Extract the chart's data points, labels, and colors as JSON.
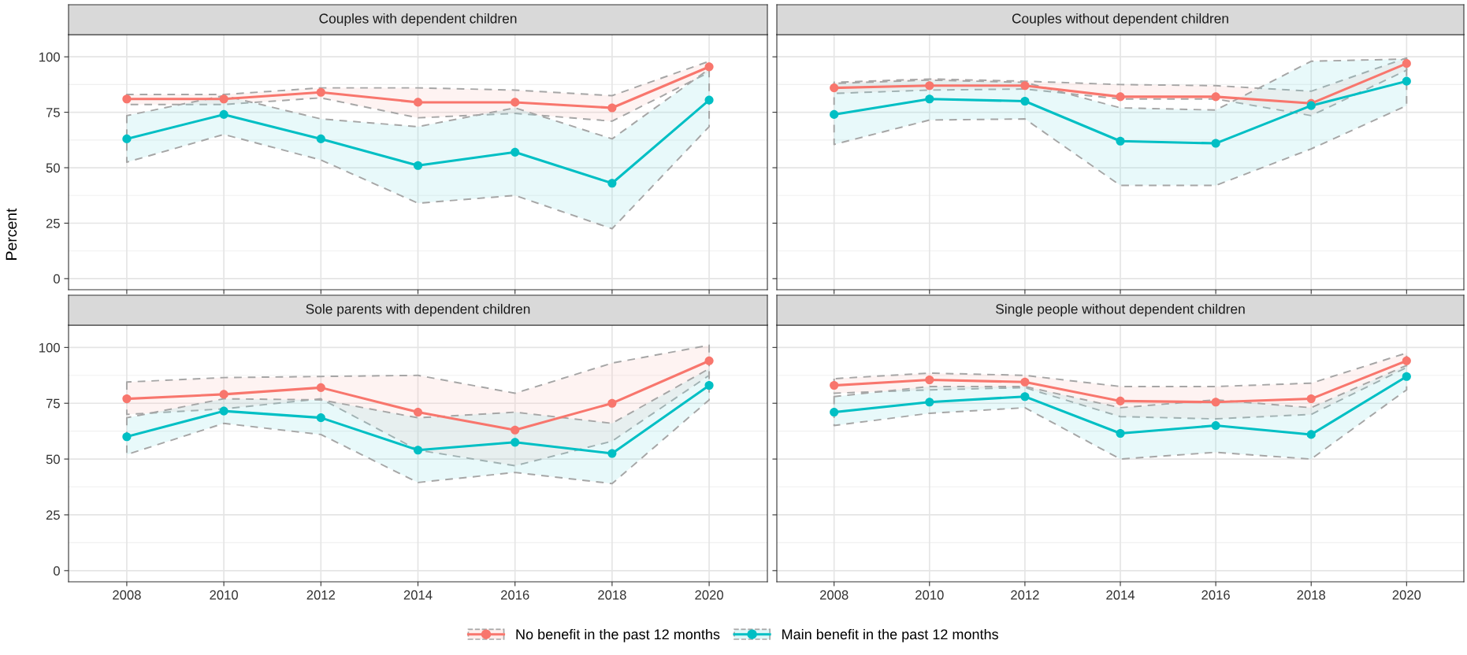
{
  "chart_data": [
    {
      "type": "line",
      "title": "Couples with dependent children",
      "ylabel": "Percent",
      "x": [
        2008,
        2010,
        2012,
        2014,
        2016,
        2018,
        2020
      ],
      "xlim": [
        2006.8,
        2021.2
      ],
      "xticks": [
        2008,
        2010,
        2012,
        2014,
        2016,
        2018,
        2020
      ],
      "ylim": [
        -5,
        110
      ],
      "yticks": [
        0,
        25,
        50,
        75,
        100
      ],
      "grid": true,
      "marker": "circle",
      "line_style": "solid",
      "legend": "bottom",
      "tick_labels": "y",
      "series": [
        {
          "name": "No benefit in the past 12 months",
          "color": "#f8766d",
          "values": [
            81,
            81,
            84,
            79.5,
            79.5,
            77,
            95.5
          ],
          "lower": [
            78.5,
            78.5,
            81.5,
            72.5,
            74.5,
            71,
            93
          ],
          "upper": [
            83,
            83,
            86,
            86,
            85,
            82.5,
            98
          ]
        },
        {
          "name": "Main benefit in the past 12 months",
          "color": "#00bfc4",
          "values": [
            63,
            74,
            63,
            51,
            57,
            43,
            80.5
          ],
          "lower": [
            52.5,
            65,
            53.5,
            34,
            37.5,
            22.5,
            68.5
          ],
          "upper": [
            73.5,
            82.5,
            72,
            68.5,
            77,
            63,
            94.5
          ]
        }
      ]
    },
    {
      "type": "line",
      "title": "Couples without dependent children",
      "x": [
        2008,
        2010,
        2012,
        2014,
        2016,
        2018,
        2020
      ],
      "xlim": [
        2006.8,
        2021.2
      ],
      "xticks": [
        2008,
        2010,
        2012,
        2014,
        2016,
        2018,
        2020
      ],
      "ylim": [
        -5,
        110
      ],
      "yticks": [
        0,
        25,
        50,
        75,
        100
      ],
      "grid": true,
      "marker": "circle",
      "line_style": "solid",
      "tick_labels": false,
      "series": [
        {
          "color": "#f8766d",
          "values": [
            86,
            87,
            87,
            82,
            82,
            79,
            97
          ],
          "lower": [
            83.5,
            85,
            85.5,
            81,
            81,
            73.5,
            94
          ],
          "upper": [
            88.5,
            90,
            89,
            87.5,
            87,
            84.5,
            99.5
          ]
        },
        {
          "color": "#00bfc4",
          "values": [
            74,
            81,
            80,
            62,
            61,
            78,
            89
          ],
          "lower": [
            60.5,
            71.5,
            72,
            42,
            42,
            58.5,
            78
          ],
          "upper": [
            88,
            89.5,
            88.5,
            77,
            76,
            98,
            99
          ]
        }
      ]
    },
    {
      "type": "line",
      "title": "Sole parents with dependent children",
      "x": [
        2008,
        2010,
        2012,
        2014,
        2016,
        2018,
        2020
      ],
      "xlim": [
        2006.8,
        2021.2
      ],
      "xticks": [
        2008,
        2010,
        2012,
        2014,
        2016,
        2018,
        2020
      ],
      "ylim": [
        -5,
        110
      ],
      "yticks": [
        0,
        25,
        50,
        75,
        100
      ],
      "grid": true,
      "marker": "circle",
      "line_style": "solid",
      "series": [
        {
          "color": "#f8766d",
          "values": [
            77,
            79,
            82,
            71,
            63,
            75,
            94
          ],
          "lower": [
            70,
            72.5,
            77,
            54,
            47,
            58,
            87.5
          ],
          "upper": [
            84.5,
            86.5,
            87,
            87.5,
            79.5,
            93,
            101
          ]
        },
        {
          "color": "#00bfc4",
          "values": [
            60,
            71.5,
            68.5,
            54,
            57.5,
            52.5,
            83
          ],
          "lower": [
            52,
            66,
            61,
            39.5,
            44,
            39,
            76.5
          ],
          "upper": [
            68.5,
            77,
            76.5,
            68.5,
            71,
            66,
            90.5
          ]
        }
      ]
    },
    {
      "type": "line",
      "title": "Single people without dependent children",
      "x": [
        2008,
        2010,
        2012,
        2014,
        2016,
        2018,
        2020
      ],
      "xlim": [
        2006.8,
        2021.2
      ],
      "xticks": [
        2008,
        2010,
        2012,
        2014,
        2016,
        2018,
        2020
      ],
      "ylim": [
        -5,
        110
      ],
      "yticks": [
        0,
        25,
        50,
        75,
        100
      ],
      "grid": true,
      "marker": "circle",
      "line_style": "solid",
      "tick_labels": "x",
      "series": [
        {
          "color": "#f8766d",
          "values": [
            83,
            85.5,
            84.5,
            76,
            75.5,
            77,
            94
          ],
          "lower": [
            79.5,
            81,
            82,
            69,
            68,
            70,
            91
          ],
          "upper": [
            86,
            88.5,
            87.5,
            82.5,
            82.5,
            84,
            97.5
          ]
        },
        {
          "color": "#00bfc4",
          "values": [
            71,
            75.5,
            78,
            61.5,
            65,
            61,
            87
          ],
          "lower": [
            65,
            70.5,
            73,
            50,
            53,
            50,
            81
          ],
          "upper": [
            78,
            82.5,
            82.5,
            73,
            76.5,
            73,
            92
          ]
        }
      ]
    }
  ]
}
